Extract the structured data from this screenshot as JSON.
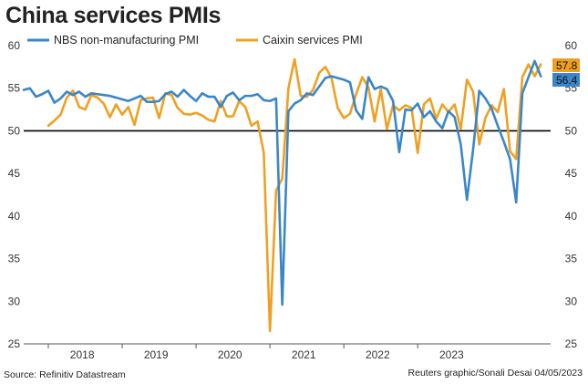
{
  "title": "China services PMIs",
  "source": "Source: Refinitiv Datastream",
  "credit": "Reuters graphic/Sonali Desai 04/05/2023",
  "chart_data": {
    "type": "line",
    "title": "China services PMIs",
    "ylim": [
      25,
      60
    ],
    "yticks": [
      25,
      30,
      35,
      40,
      45,
      50,
      55,
      60
    ],
    "reference_line": 50,
    "legend_position": "top-left",
    "x_start": "2017-09",
    "x_tick_labels": [
      "2018",
      "2019",
      "2020",
      "2021",
      "2022",
      "2023"
    ],
    "series": [
      {
        "name": "NBS non-manufacturing PMI",
        "color": "#3a86c8",
        "last_value": "56.4",
        "values": [
          54.8,
          55.0,
          54.0,
          54.3,
          54.7,
          53.3,
          53.8,
          54.6,
          54.2,
          54.6,
          54.0,
          54.4,
          54.3,
          54.2,
          54.1,
          53.9,
          53.7,
          53.5,
          53.8,
          54.1,
          53.4,
          53.4,
          53.5,
          54.3,
          54.6,
          54.0,
          54.8,
          54.1,
          53.5,
          54.4,
          54.0,
          54.0,
          52.8,
          54.1,
          54.5,
          53.6,
          54.1,
          54.1,
          54.3,
          53.6,
          53.5,
          53.8,
          29.6,
          52.3,
          53.2,
          53.6,
          54.4,
          54.2,
          55.2,
          56.2,
          56.4,
          56.2,
          56.0,
          55.7,
          52.4,
          51.4,
          56.3,
          54.9,
          55.2,
          54.9,
          53.5,
          47.5,
          52.5,
          52.4,
          53.2,
          51.6,
          52.3,
          51.1,
          50.3,
          52.3,
          51.6,
          48.4,
          41.9,
          47.8,
          54.7,
          53.8,
          52.6,
          50.6,
          48.7,
          46.7,
          41.6,
          54.4,
          56.3,
          58.2,
          56.4
        ]
      },
      {
        "name": "Caixin services PMI",
        "color": "#f0a020",
        "last_value": "57.8",
        "values": [
          50.6,
          51.2,
          51.9,
          53.9,
          54.7,
          52.8,
          52.5,
          54.2,
          53.9,
          53.2,
          51.6,
          53.1,
          51.9,
          52.8,
          50.7,
          53.6,
          53.8,
          53.9,
          51.5,
          54.4,
          54.2,
          52.7,
          52.0,
          51.9,
          52.1,
          51.8,
          51.3,
          51.1,
          53.5,
          51.7,
          51.7,
          53.5,
          52.8,
          50.6,
          51.1,
          47.4,
          26.5,
          43.0,
          44.4,
          55.0,
          58.4,
          54.1,
          54.0,
          54.8,
          56.8,
          57.5,
          56.2,
          52.7,
          51.5,
          52.0,
          54.3,
          56.3,
          55.1,
          51.1,
          54.9,
          50.2,
          53.0,
          52.4,
          53.0,
          52.7,
          47.4,
          53.1,
          53.8,
          51.4,
          53.1,
          52.2,
          53.1,
          50.2,
          56.0,
          54.6,
          48.4,
          51.5,
          53.0,
          52.2,
          54.9,
          47.6,
          46.7,
          56.3,
          57.8,
          56.4,
          57.8
        ],
        "x_offset": 4
      }
    ]
  }
}
